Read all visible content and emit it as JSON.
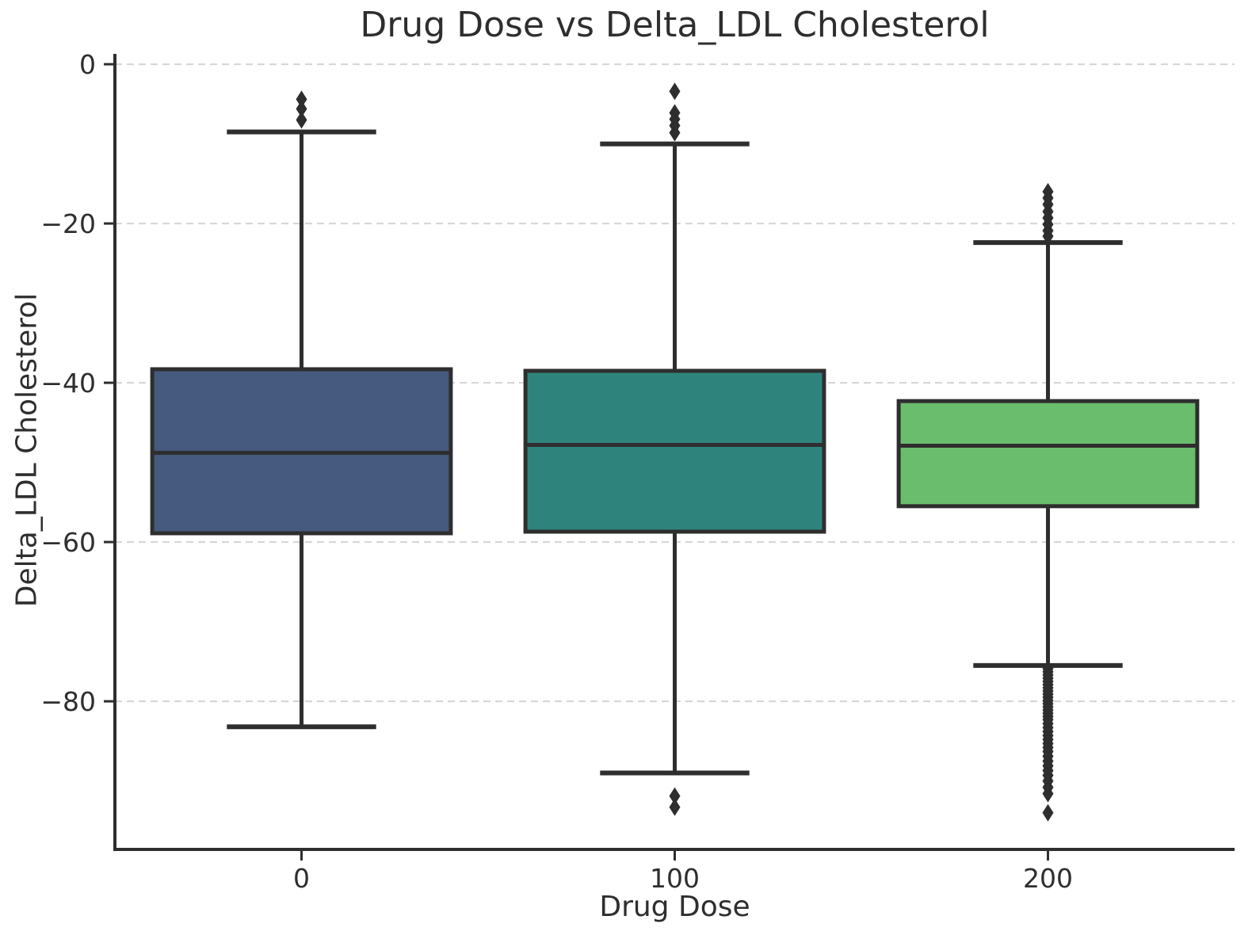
{
  "title": "Drug Dose vs Delta_LDL Cholesterol",
  "chart_data": {
    "type": "box",
    "title": "Drug Dose vs Delta_LDL Cholesterol",
    "xlabel": "Drug Dose",
    "ylabel": "Delta_LDL Cholesterol",
    "categories": [
      "0",
      "100",
      "200"
    ],
    "ylim": [
      -98.6,
      1.3
    ],
    "yticks": [
      0,
      -20,
      -40,
      -60,
      -80
    ],
    "ytick_labels": [
      "0",
      "−20",
      "−40",
      "−60",
      "−80"
    ],
    "grid": {
      "on": true,
      "axis": "y",
      "linestyle": "dashed",
      "color": "#d4d4d4"
    },
    "line_color": "#2e2e2e",
    "background": "#ffffff",
    "legend": "none",
    "series": [
      {
        "category": "0",
        "fill_color": "#46597e",
        "q1": -58.9,
        "median": -48.8,
        "q3": -38.3,
        "whisker_low": -83.2,
        "whisker_high": -8.5,
        "outliers": [
          -4.4,
          -5.6,
          -7.0
        ]
      },
      {
        "category": "100",
        "fill_color": "#2e847d",
        "q1": -58.7,
        "median": -47.8,
        "q3": -38.5,
        "whisker_low": -89.0,
        "whisker_high": -10.0,
        "outliers": [
          -3.4,
          -6.1,
          -6.9,
          -7.7,
          -8.6,
          -91.9,
          -93.3
        ]
      },
      {
        "category": "200",
        "fill_color": "#6abd6c",
        "q1": -55.5,
        "median": -47.9,
        "q3": -42.3,
        "whisker_low": -75.5,
        "whisker_high": -22.4,
        "outliers": [
          -16.0,
          -16.8,
          -17.6,
          -18.5,
          -19.3,
          -20.1,
          -20.9,
          -21.6,
          -75.9,
          -76.3,
          -76.7,
          -77.1,
          -77.5,
          -77.9,
          -78.3,
          -78.7,
          -79.1,
          -79.5,
          -79.9,
          -80.3,
          -80.7,
          -81.1,
          -81.5,
          -81.9,
          -82.3,
          -82.8,
          -83.3,
          -83.8,
          -84.3,
          -84.8,
          -85.3,
          -85.8,
          -86.3,
          -86.9,
          -87.5,
          -88.1,
          -88.7,
          -89.3,
          -90.0,
          -90.8,
          -91.6,
          -94.0
        ]
      }
    ]
  }
}
